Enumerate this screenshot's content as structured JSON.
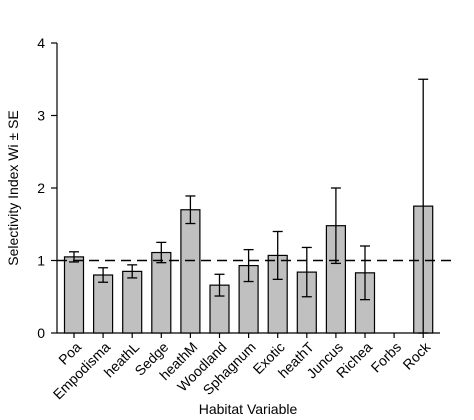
{
  "chart_data": {
    "type": "bar",
    "title": "",
    "xlabel": "Habitat Variable",
    "ylabel": "Selectivity Index Wi ± SE",
    "ylim": [
      0,
      4
    ],
    "yticks": [
      "0",
      "1",
      "2",
      "3",
      "4"
    ],
    "categories": [
      "Poa",
      "Empodisma",
      "heathL",
      "Sedge",
      "heathM",
      "Woodland",
      "Sphagnum",
      "Exotic",
      "heathT",
      "Juncus",
      "Richea",
      "Forbs",
      "Rock"
    ],
    "values": [
      1.05,
      0.8,
      0.85,
      1.11,
      1.7,
      0.66,
      0.93,
      1.07,
      0.84,
      1.48,
      0.83,
      null,
      1.75
    ],
    "errors": [
      0.07,
      0.1,
      0.09,
      0.14,
      0.19,
      0.15,
      0.22,
      0.33,
      0.34,
      0.52,
      0.37,
      null,
      1.75
    ],
    "reference_line": 1,
    "grid": false,
    "bar_color": "#c0c0c0",
    "bar_edge_color": "#000000"
  }
}
